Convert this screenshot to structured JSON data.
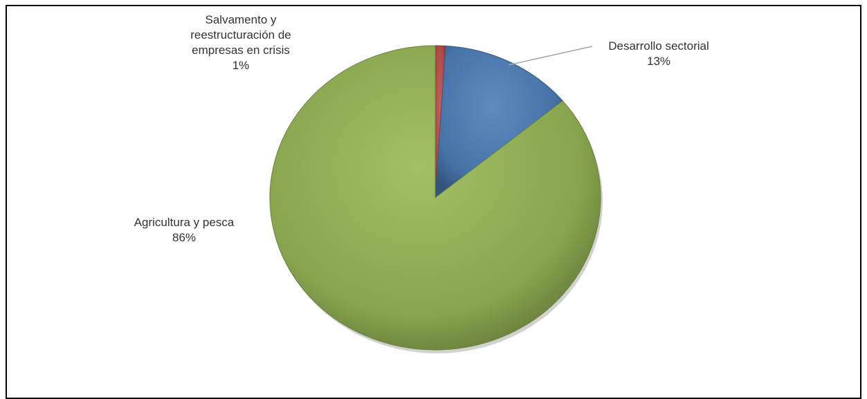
{
  "chart_data": {
    "type": "pie",
    "slices": [
      {
        "name": "Salvamento y reestructuración de empresas en crisis",
        "lines": [
          "Salvamento y",
          "reestructuración de",
          "empresas en crisis"
        ],
        "value": 1,
        "percent_label": "1%",
        "color": "#c0504d"
      },
      {
        "name": "Desarrollo sectorial",
        "lines": [
          "Desarrollo sectorial"
        ],
        "value": 13,
        "percent_label": "13%",
        "color": "#4f81bd"
      },
      {
        "name": "Agricultura y pesca",
        "lines": [
          "Agricultura y pesca"
        ],
        "value": 86,
        "percent_label": "86%",
        "color": "#9bbb59"
      }
    ],
    "legend": "none",
    "data_labels": "outside"
  }
}
